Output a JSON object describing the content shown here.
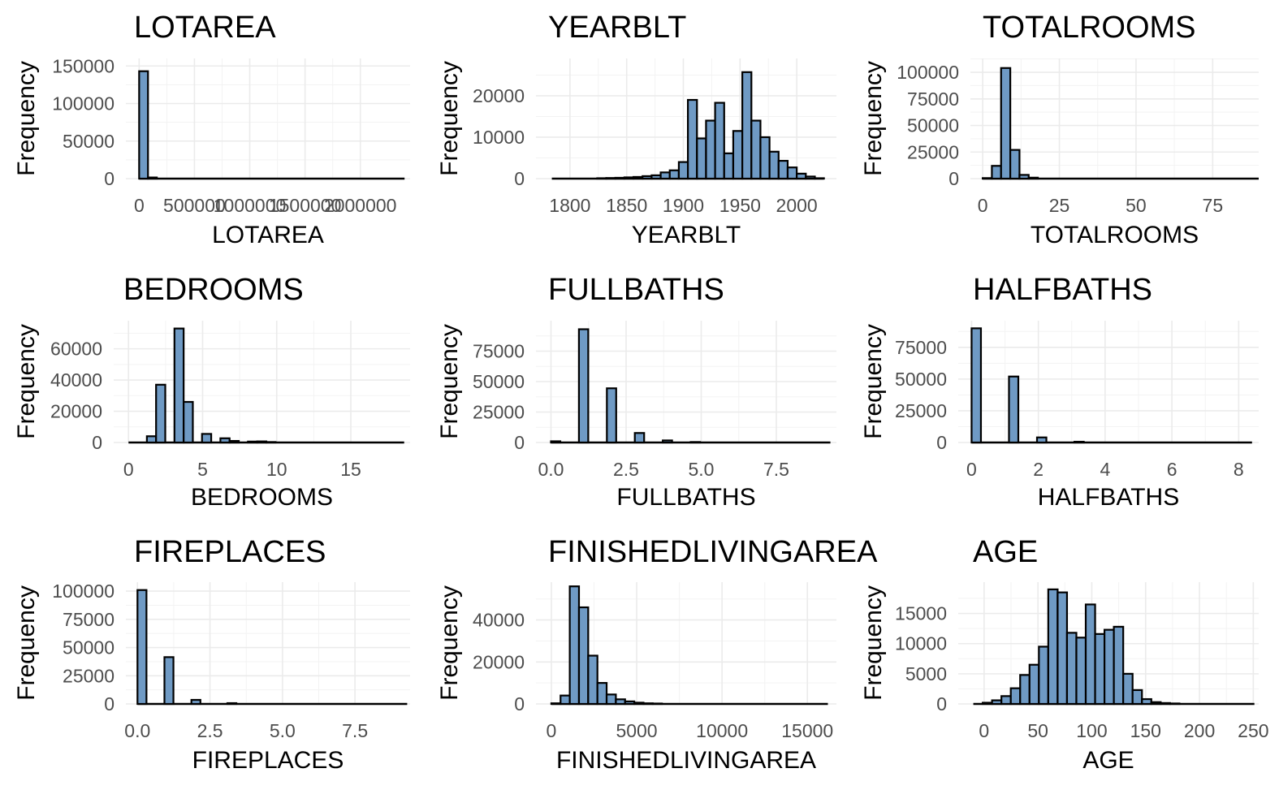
{
  "figure": {
    "background": "#ffffff"
  },
  "style": {
    "bar_fill": "#6f9ac4",
    "bar_stroke": "#000000",
    "grid_color": "#ebebeb"
  },
  "chart_data": [
    {
      "type": "bar",
      "title": "LOTAREA",
      "xlabel": "LOTAREA",
      "ylabel": "Frequency",
      "xlim": [
        -120000,
        2450000
      ],
      "ylim": [
        0,
        160000
      ],
      "xticks": [
        0,
        500000,
        1000000,
        1500000,
        2000000
      ],
      "xtick_labels": [
        "0",
        "500000",
        "1000000",
        "1500000",
        "2000000"
      ],
      "yticks": [
        0,
        50000,
        100000,
        150000
      ],
      "ytick_labels": [
        "0",
        "50000",
        "100000",
        "150000"
      ],
      "bin_width": 80000,
      "bins": [
        [
          0,
          143000
        ],
        [
          80000,
          1500
        ],
        [
          160000,
          200
        ],
        [
          240000,
          60
        ],
        [
          320000,
          20
        ],
        [
          400000,
          10
        ],
        [
          480000,
          5
        ],
        [
          560000,
          3
        ],
        [
          640000,
          2
        ],
        [
          720000,
          1
        ],
        [
          800000,
          1
        ],
        [
          880000,
          1
        ],
        [
          960000,
          1
        ],
        [
          1040000,
          1
        ],
        [
          1120000,
          0
        ],
        [
          1200000,
          1
        ],
        [
          1280000,
          0
        ],
        [
          1360000,
          0
        ],
        [
          1440000,
          1
        ],
        [
          1520000,
          0
        ],
        [
          1600000,
          0
        ],
        [
          1680000,
          0
        ],
        [
          1760000,
          0
        ],
        [
          1840000,
          0
        ],
        [
          1920000,
          0
        ],
        [
          2000000,
          0
        ],
        [
          2080000,
          0
        ],
        [
          2160000,
          0
        ],
        [
          2240000,
          0
        ],
        [
          2320000,
          1
        ]
      ]
    },
    {
      "type": "bar",
      "title": "YEARBLT",
      "xlabel": "YEARBLT",
      "ylabel": "Frequency",
      "xlim": [
        1770,
        2035
      ],
      "ylim": [
        0,
        29000
      ],
      "xticks": [
        1800,
        1850,
        1900,
        1950,
        2000
      ],
      "xtick_labels": [
        "1800",
        "1850",
        "1900",
        "1950",
        "2000"
      ],
      "yticks": [
        0,
        10000,
        20000
      ],
      "ytick_labels": [
        "0",
        "10000",
        "20000"
      ],
      "bin_width": 8,
      "bins": [
        [
          1784,
          20
        ],
        [
          1792,
          30
        ],
        [
          1800,
          40
        ],
        [
          1808,
          60
        ],
        [
          1816,
          80
        ],
        [
          1824,
          100
        ],
        [
          1832,
          150
        ],
        [
          1840,
          200
        ],
        [
          1848,
          300
        ],
        [
          1856,
          400
        ],
        [
          1864,
          600
        ],
        [
          1872,
          800
        ],
        [
          1880,
          1500
        ],
        [
          1888,
          2000
        ],
        [
          1896,
          4000
        ],
        [
          1904,
          19000
        ],
        [
          1912,
          9700
        ],
        [
          1920,
          14000
        ],
        [
          1928,
          18300
        ],
        [
          1936,
          6100
        ],
        [
          1944,
          11500
        ],
        [
          1952,
          25700
        ],
        [
          1960,
          14000
        ],
        [
          1968,
          10000
        ],
        [
          1976,
          6500
        ],
        [
          1984,
          4300
        ],
        [
          1992,
          2700
        ],
        [
          2000,
          1200
        ],
        [
          2008,
          500
        ],
        [
          2016,
          100
        ]
      ]
    },
    {
      "type": "bar",
      "title": "TOTALROOMS",
      "xlabel": "TOTALROOMS",
      "ylabel": "Frequency",
      "xlim": [
        -4,
        90
      ],
      "ylim": [
        0,
        113000
      ],
      "xticks": [
        0,
        25,
        50,
        75
      ],
      "xtick_labels": [
        "0",
        "25",
        "50",
        "75"
      ],
      "yticks": [
        0,
        25000,
        50000,
        75000,
        100000
      ],
      "ytick_labels": [
        "0",
        "25000",
        "50000",
        "75000",
        "100000"
      ],
      "bin_width": 3,
      "bins": [
        [
          0,
          500
        ],
        [
          3,
          12000
        ],
        [
          6,
          104000
        ],
        [
          9,
          27000
        ],
        [
          12,
          3500
        ],
        [
          15,
          900
        ],
        [
          18,
          300
        ],
        [
          21,
          120
        ],
        [
          24,
          60
        ],
        [
          27,
          30
        ],
        [
          30,
          15
        ],
        [
          33,
          8
        ],
        [
          36,
          5
        ],
        [
          39,
          3
        ],
        [
          42,
          2
        ],
        [
          45,
          2
        ],
        [
          48,
          1
        ],
        [
          51,
          1
        ],
        [
          54,
          1
        ],
        [
          57,
          1
        ],
        [
          60,
          0
        ],
        [
          63,
          0
        ],
        [
          66,
          1
        ],
        [
          69,
          0
        ],
        [
          72,
          0
        ],
        [
          75,
          0
        ],
        [
          78,
          0
        ],
        [
          81,
          0
        ],
        [
          84,
          0
        ],
        [
          87,
          1
        ]
      ]
    },
    {
      "type": "bar",
      "title": "BEDROOMS",
      "xlabel": "BEDROOMS",
      "ylabel": "Frequency",
      "xlim": [
        -1,
        19
      ],
      "ylim": [
        0,
        78000
      ],
      "xticks": [
        0,
        5,
        10,
        15
      ],
      "xtick_labels": [
        "0",
        "5",
        "10",
        "15"
      ],
      "yticks": [
        0,
        20000,
        40000,
        60000
      ],
      "ytick_labels": [
        "0",
        "20000",
        "40000",
        "60000"
      ],
      "bin_width": 0.62,
      "bins": [
        [
          0,
          100
        ],
        [
          0.62,
          100
        ],
        [
          1.24,
          4000
        ],
        [
          1.86,
          37000
        ],
        [
          2.48,
          100
        ],
        [
          3.1,
          73000
        ],
        [
          3.72,
          26000
        ],
        [
          4.34,
          100
        ],
        [
          4.96,
          5500
        ],
        [
          5.58,
          100
        ],
        [
          6.2,
          2700
        ],
        [
          6.82,
          1000
        ],
        [
          7.44,
          200
        ],
        [
          8.06,
          600
        ],
        [
          8.68,
          700
        ],
        [
          9.3,
          300
        ],
        [
          9.92,
          100
        ],
        [
          10.54,
          100
        ],
        [
          11.16,
          50
        ],
        [
          11.78,
          30
        ],
        [
          12.4,
          20
        ],
        [
          13.02,
          10
        ],
        [
          13.64,
          10
        ],
        [
          14.26,
          5
        ],
        [
          14.88,
          5
        ],
        [
          15.5,
          3
        ],
        [
          16.12,
          2
        ],
        [
          16.74,
          1
        ],
        [
          17.36,
          1
        ],
        [
          17.98,
          1
        ]
      ]
    },
    {
      "type": "bar",
      "title": "FULLBATHS",
      "xlabel": "FULLBATHS",
      "ylabel": "Frequency",
      "xlim": [
        -0.5,
        9.5
      ],
      "ylim": [
        0,
        100000
      ],
      "xticks": [
        0,
        2.5,
        5,
        7.5
      ],
      "xtick_labels": [
        "0.0",
        "2.5",
        "5.0",
        "7.5"
      ],
      "yticks": [
        0,
        25000,
        50000,
        75000
      ],
      "ytick_labels": [
        "0",
        "25000",
        "50000",
        "75000"
      ],
      "bin_width": 0.31,
      "bins": [
        [
          0,
          1000
        ],
        [
          0.31,
          0
        ],
        [
          0.62,
          0
        ],
        [
          0.93,
          93000
        ],
        [
          1.24,
          0
        ],
        [
          1.55,
          0
        ],
        [
          1.86,
          44500
        ],
        [
          2.17,
          0
        ],
        [
          2.48,
          0
        ],
        [
          2.79,
          7800
        ],
        [
          3.1,
          0
        ],
        [
          3.41,
          0
        ],
        [
          3.72,
          1700
        ],
        [
          4.03,
          0
        ],
        [
          4.34,
          0
        ],
        [
          4.65,
          400
        ],
        [
          4.96,
          0
        ],
        [
          5.27,
          0
        ],
        [
          5.58,
          200
        ],
        [
          5.89,
          0
        ],
        [
          6.2,
          0
        ],
        [
          6.51,
          60
        ],
        [
          6.82,
          0
        ],
        [
          7.13,
          0
        ],
        [
          7.44,
          20
        ],
        [
          7.75,
          0
        ],
        [
          8.06,
          0
        ],
        [
          8.37,
          10
        ],
        [
          8.68,
          0
        ],
        [
          8.99,
          5
        ]
      ]
    },
    {
      "type": "bar",
      "title": "HALFBATHS",
      "xlabel": "HALFBATHS",
      "ylabel": "Frequency",
      "xlim": [
        -0.4,
        8.6
      ],
      "ylim": [
        0,
        96000
      ],
      "xticks": [
        0,
        2,
        4,
        6,
        8
      ],
      "xtick_labels": [
        "0",
        "2",
        "4",
        "6",
        "8"
      ],
      "yticks": [
        0,
        25000,
        50000,
        75000
      ],
      "ytick_labels": [
        "0",
        "25000",
        "50000",
        "75000"
      ],
      "bin_width": 0.28,
      "bins": [
        [
          0,
          90000
        ],
        [
          0.28,
          0
        ],
        [
          0.56,
          0
        ],
        [
          0.84,
          0
        ],
        [
          1.12,
          52000
        ],
        [
          1.4,
          0
        ],
        [
          1.68,
          0
        ],
        [
          1.96,
          4000
        ],
        [
          2.24,
          0
        ],
        [
          2.52,
          0
        ],
        [
          2.8,
          0
        ],
        [
          3.08,
          600
        ],
        [
          3.36,
          0
        ],
        [
          3.64,
          0
        ],
        [
          3.92,
          80
        ],
        [
          4.2,
          0
        ],
        [
          4.48,
          0
        ],
        [
          4.76,
          0
        ],
        [
          5.04,
          20
        ],
        [
          5.32,
          0
        ],
        [
          5.6,
          0
        ],
        [
          5.88,
          10
        ],
        [
          6.16,
          0
        ],
        [
          6.44,
          0
        ],
        [
          6.72,
          0
        ],
        [
          7,
          5
        ],
        [
          7.28,
          0
        ],
        [
          7.56,
          0
        ],
        [
          7.84,
          0
        ],
        [
          8.12,
          2
        ]
      ]
    },
    {
      "type": "bar",
      "title": "FIREPLACES",
      "xlabel": "FIREPLACES",
      "ylabel": "Frequency",
      "xlim": [
        -0.4,
        9.4
      ],
      "ylim": [
        0,
        108000
      ],
      "xticks": [
        0,
        2.5,
        5,
        7.5
      ],
      "xtick_labels": [
        "0.0",
        "2.5",
        "5.0",
        "7.5"
      ],
      "yticks": [
        0,
        25000,
        50000,
        75000,
        100000
      ],
      "ytick_labels": [
        "0",
        "25000",
        "50000",
        "75000",
        "100000"
      ],
      "bin_width": 0.31,
      "bins": [
        [
          0,
          101000
        ],
        [
          0.31,
          0
        ],
        [
          0.62,
          0
        ],
        [
          0.93,
          41500
        ],
        [
          1.24,
          0
        ],
        [
          1.55,
          0
        ],
        [
          1.86,
          3600
        ],
        [
          2.17,
          0
        ],
        [
          2.48,
          0
        ],
        [
          2.79,
          0
        ],
        [
          3.1,
          700
        ],
        [
          3.41,
          0
        ],
        [
          3.72,
          0
        ],
        [
          4.03,
          100
        ],
        [
          4.34,
          0
        ],
        [
          4.65,
          0
        ],
        [
          4.96,
          30
        ],
        [
          5.27,
          0
        ],
        [
          5.58,
          0
        ],
        [
          5.89,
          10
        ],
        [
          6.2,
          0
        ],
        [
          6.51,
          0
        ],
        [
          6.82,
          5
        ],
        [
          7.13,
          0
        ],
        [
          7.44,
          0
        ],
        [
          7.75,
          2
        ],
        [
          8.06,
          0
        ],
        [
          8.37,
          0
        ],
        [
          8.68,
          1
        ],
        [
          8.99,
          1
        ]
      ]
    },
    {
      "type": "bar",
      "title": "FINISHEDLIVINGAREA",
      "xlabel": "FINISHEDLIVINGAREA",
      "ylabel": "Frequency",
      "xlim": [
        -900,
        16700
      ],
      "ylim": [
        0,
        58000
      ],
      "xticks": [
        0,
        5000,
        10000,
        15000
      ],
      "xtick_labels": [
        "0",
        "5000",
        "10000",
        "15000"
      ],
      "yticks": [
        0,
        20000,
        40000
      ],
      "ytick_labels": [
        "0",
        "20000",
        "40000"
      ],
      "bin_width": 540,
      "bins": [
        [
          0,
          300
        ],
        [
          540,
          4000
        ],
        [
          1080,
          56000
        ],
        [
          1620,
          46000
        ],
        [
          2160,
          23000
        ],
        [
          2700,
          10000
        ],
        [
          3240,
          4500
        ],
        [
          3780,
          2200
        ],
        [
          4320,
          1200
        ],
        [
          4860,
          600
        ],
        [
          5400,
          300
        ],
        [
          5940,
          200
        ],
        [
          6480,
          120
        ],
        [
          7020,
          80
        ],
        [
          7560,
          50
        ],
        [
          8100,
          30
        ],
        [
          8640,
          20
        ],
        [
          9180,
          15
        ],
        [
          9720,
          10
        ],
        [
          10260,
          8
        ],
        [
          10800,
          5
        ],
        [
          11340,
          4
        ],
        [
          11880,
          3
        ],
        [
          12420,
          2
        ],
        [
          12960,
          2
        ],
        [
          13500,
          1
        ],
        [
          14040,
          1
        ],
        [
          14580,
          1
        ],
        [
          15120,
          1
        ],
        [
          15660,
          1
        ]
      ]
    },
    {
      "type": "bar",
      "title": "AGE",
      "xlabel": "AGE",
      "ylabel": "Frequency",
      "xlim": [
        -24,
        255
      ],
      "ylim": [
        0,
        20200
      ],
      "xticks": [
        0,
        50,
        100,
        150,
        200,
        250
      ],
      "xtick_labels": [
        "0",
        "50",
        "100",
        "150",
        "200",
        "250"
      ],
      "yticks": [
        0,
        5000,
        10000,
        15000
      ],
      "ytick_labels": [
        "0",
        "5000",
        "10000",
        "15000"
      ],
      "bin_width": 8.7,
      "bins": [
        [
          -10,
          50
        ],
        [
          -1.3,
          200
        ],
        [
          7.4,
          600
        ],
        [
          16.1,
          1300
        ],
        [
          24.8,
          2600
        ],
        [
          33.5,
          4800
        ],
        [
          42.2,
          6500
        ],
        [
          50.9,
          9500
        ],
        [
          59.6,
          19000
        ],
        [
          68.3,
          18500
        ],
        [
          77,
          11800
        ],
        [
          85.7,
          11000
        ],
        [
          94.4,
          16500
        ],
        [
          103.1,
          11600
        ],
        [
          111.8,
          12300
        ],
        [
          120.5,
          12800
        ],
        [
          129.2,
          5000
        ],
        [
          137.9,
          2300
        ],
        [
          146.6,
          800
        ],
        [
          155.3,
          300
        ],
        [
          164,
          150
        ],
        [
          172.7,
          80
        ],
        [
          181.4,
          40
        ],
        [
          190.1,
          20
        ],
        [
          198.8,
          10
        ],
        [
          207.5,
          5
        ],
        [
          216.2,
          3
        ],
        [
          224.9,
          2
        ],
        [
          233.6,
          1
        ],
        [
          242.3,
          1
        ]
      ]
    }
  ]
}
